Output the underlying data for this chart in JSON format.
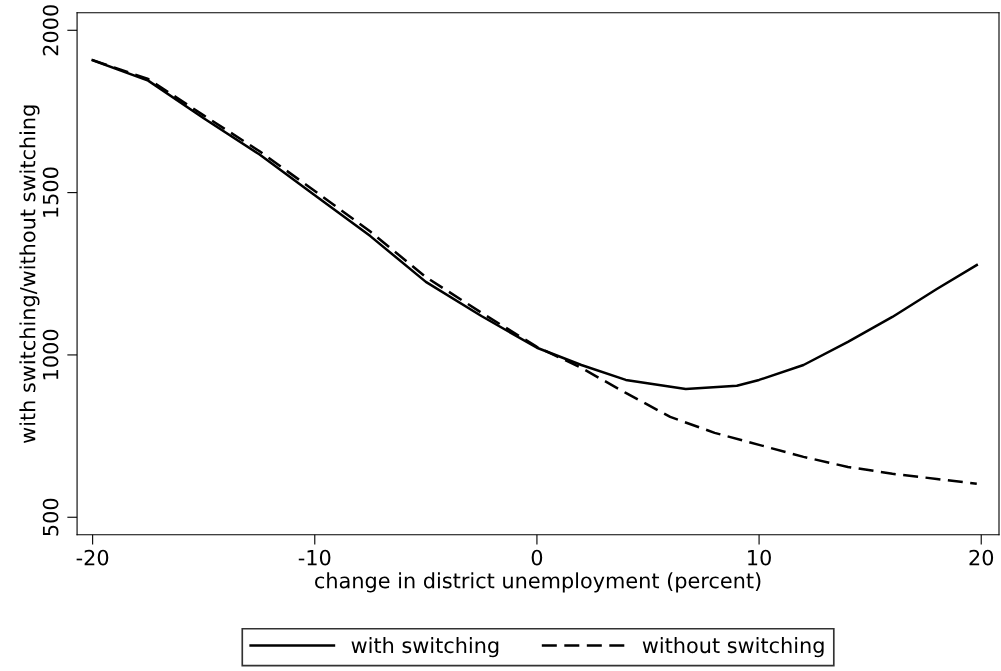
{
  "chart_data": {
    "type": "line",
    "xlabel": "change in district unemployment (percent)",
    "ylabel": "with switching/without switching",
    "xlim": [
      -20.7,
      20.8
    ],
    "xticks": [
      -20,
      -10,
      0,
      10,
      20
    ],
    "ylim": [
      446,
      2054
    ],
    "yticks": [
      500,
      1000,
      1500,
      2000
    ],
    "grid": false,
    "legend": "bottom",
    "series": [
      {
        "name": "with switching",
        "color": "#000000",
        "line_style": "solid",
        "x": [
          -20,
          -17.5,
          -15,
          -12.5,
          -10,
          -7.5,
          -5,
          -2.5,
          0,
          2,
          4,
          6.7,
          9,
          10,
          12,
          14,
          16,
          18,
          19.8
        ],
        "values": [
          1908,
          1845,
          1729,
          1618,
          1492,
          1366,
          1225,
          1120,
          1022,
          969,
          923,
          895,
          905,
          923,
          969,
          1040,
          1117,
          1203,
          1277
        ]
      },
      {
        "name": "without switching",
        "color": "#000000",
        "line_style": "dashed",
        "x": [
          -20,
          -17.5,
          -15,
          -12.5,
          -10,
          -7.5,
          -5,
          -2.5,
          0,
          2,
          4,
          6,
          8,
          10,
          12,
          14,
          16,
          18,
          19.8
        ],
        "values": [
          1908,
          1850,
          1738,
          1628,
          1505,
          1380,
          1240,
          1130,
          1025,
          960,
          883,
          809,
          760,
          723,
          686,
          655,
          634,
          618,
          603
        ]
      }
    ]
  }
}
